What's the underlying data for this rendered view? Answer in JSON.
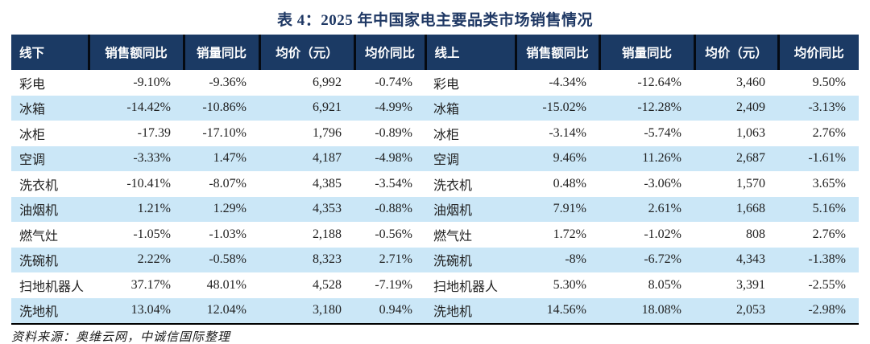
{
  "title": "表 4：2025 年中国家电主要品类市场销售情况",
  "source_note": "资料来源：奥维云网，中诚信国际整理",
  "colors": {
    "header_bg": "#1B3A64",
    "header_text": "#FFFFFF",
    "title_text": "#1F3864",
    "row_alt_bg": "#CBE7F7",
    "table_bottom_border": "#000000",
    "header_separator": "#050A12"
  },
  "table": {
    "headers": [
      "线下",
      "销售额同比",
      "销量同比",
      "均价（元）",
      "均价同比",
      "线上",
      "销售额同比",
      "销量同比",
      "均价（元）",
      "均价同比"
    ],
    "rows": [
      [
        "彩电",
        "-9.10%",
        "-9.36%",
        "6,992",
        "-0.74%",
        "彩电",
        "-4.34%",
        "-12.64%",
        "3,460",
        "9.50%"
      ],
      [
        "冰箱",
        "-14.42%",
        "-10.86%",
        "6,921",
        "-4.99%",
        "冰箱",
        "-15.02%",
        "-12.28%",
        "2,409",
        "-3.13%"
      ],
      [
        "冰柜",
        "-17.39",
        "-17.10%",
        "1,796",
        "-0.89%",
        "冰柜",
        "-3.14%",
        "-5.74%",
        "1,063",
        "2.76%"
      ],
      [
        "空调",
        "-3.33%",
        "1.47%",
        "4,187",
        "-4.98%",
        "空调",
        "9.46%",
        "11.26%",
        "2,687",
        "-1.61%"
      ],
      [
        "洗衣机",
        "-10.41%",
        "-8.07%",
        "4,385",
        "-3.54%",
        "洗衣机",
        "0.48%",
        "-3.06%",
        "1,570",
        "3.65%"
      ],
      [
        "油烟机",
        "1.21%",
        "1.29%",
        "4,353",
        "-0.88%",
        "油烟机",
        "7.91%",
        "2.61%",
        "1,668",
        "5.16%"
      ],
      [
        "燃气灶",
        "-1.05%",
        "-1.03%",
        "2,188",
        "-0.56%",
        "燃气灶",
        "1.72%",
        "-1.02%",
        "808",
        "2.76%"
      ],
      [
        "洗碗机",
        "2.22%",
        "-0.58%",
        "8,323",
        "2.71%",
        "洗碗机",
        "-8%",
        "-6.72%",
        "4,343",
        "-1.38%"
      ],
      [
        "扫地机器人",
        "37.17%",
        "48.01%",
        "4,528",
        "-7.19%",
        "扫地机器人",
        "5.30%",
        "8.05%",
        "3,391",
        "-2.55%"
      ],
      [
        "洗地机",
        "13.04%",
        "12.04%",
        "3,180",
        "0.94%",
        "洗地机",
        "14.56%",
        "18.08%",
        "2,053",
        "-2.98%"
      ]
    ]
  }
}
